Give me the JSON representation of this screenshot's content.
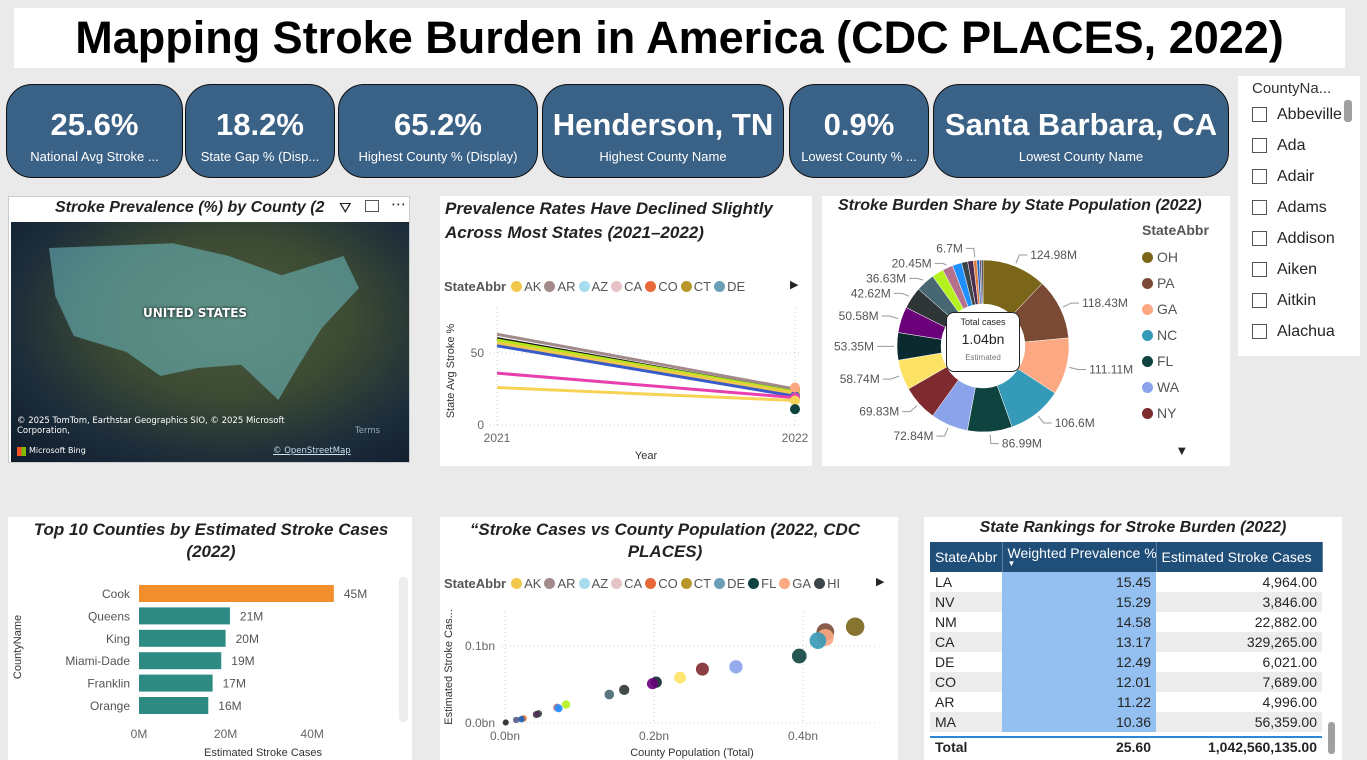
{
  "title": "Mapping Stroke Burden in America (CDC PLACES, 2022)",
  "kpis": [
    {
      "value": "25.6%",
      "label": "National Avg Stroke ..."
    },
    {
      "value": "18.2%",
      "label": "State Gap % (Disp..."
    },
    {
      "value": "65.2%",
      "label": "Highest County % (Display)"
    },
    {
      "value": "Henderson, TN",
      "label": "Highest County Name"
    },
    {
      "value": "0.9%",
      "label": "Lowest County % ..."
    },
    {
      "value": "Santa Barbara, CA",
      "label": "Lowest County Name"
    }
  ],
  "slicer": {
    "header": "CountyNa...",
    "items": [
      "Abbeville",
      "Ada",
      "Adair",
      "Adams",
      "Addison",
      "Aiken",
      "Aitkin",
      "Alachua"
    ]
  },
  "map": {
    "title": "Stroke Prevalence (%) by County (2",
    "label": "UNITED STATES",
    "attribution": "© 2025 TomTom, Earthstar Geographics SIO, © 2025 Microsoft Corporation,",
    "terms": "Terms",
    "osm": "© OpenStreetMap",
    "brand": "Microsoft Bing",
    "icons": [
      "filter-icon",
      "focus-mode-icon",
      "more-options-icon"
    ]
  },
  "line": {
    "title": "Prevalence Rates Have Declined Slightly Across Most States (2021–2022)",
    "legend_title": "StateAbbr",
    "legend": [
      {
        "name": "AK",
        "color": "#f2c84b"
      },
      {
        "name": "AR",
        "color": "#a38a8a"
      },
      {
        "name": "AZ",
        "color": "#a8dcef"
      },
      {
        "name": "CA",
        "color": "#e6c3c6"
      },
      {
        "name": "CO",
        "color": "#e8683a"
      },
      {
        "name": "CT",
        "color": "#b8962a"
      },
      {
        "name": "DE",
        "color": "#6a9fb5"
      }
    ]
  },
  "scatter": {
    "title": "“Stroke Cases vs County Population (2022, CDC PLACES)",
    "legend_title": "StateAbbr",
    "legend": [
      {
        "name": "AK",
        "color": "#f2c84b"
      },
      {
        "name": "AR",
        "color": "#a38a8a"
      },
      {
        "name": "AZ",
        "color": "#a8dcef"
      },
      {
        "name": "CA",
        "color": "#e6c3c6"
      },
      {
        "name": "CO",
        "color": "#e8683a"
      },
      {
        "name": "CT",
        "color": "#b8962a"
      },
      {
        "name": "DE",
        "color": "#6a9fb5"
      },
      {
        "name": "FL",
        "color": "#0e433f"
      },
      {
        "name": "GA",
        "color": "#fba883"
      },
      {
        "name": "HI",
        "color": "#3c4548"
      }
    ]
  },
  "donut": {
    "title": "Stroke Burden Share by State Population (2022)",
    "legend_title": "StateAbbr",
    "center_label": "Total cases",
    "center_value": "1.04bn",
    "center_sub": "Estimated",
    "legend": [
      {
        "name": "OH",
        "color": "#7a6519"
      },
      {
        "name": "PA",
        "color": "#7b4a35"
      },
      {
        "name": "GA",
        "color": "#fba883"
      },
      {
        "name": "NC",
        "color": "#3599b8"
      },
      {
        "name": "FL",
        "color": "#0e433f"
      },
      {
        "name": "WA",
        "color": "#8aa3ea"
      },
      {
        "name": "NY",
        "color": "#7e2a2f"
      }
    ]
  },
  "bar": {
    "title": "Top 10 Counties by Estimated Stroke Cases (2022)"
  },
  "table": {
    "title": "State Rankings for Stroke Burden (2022)",
    "columns": [
      "StateAbbr",
      "Weighted Prevalence %",
      "Estimated Stroke Cases"
    ],
    "rows": [
      [
        "LA",
        "15.45",
        "4,964.00"
      ],
      [
        "NV",
        "15.29",
        "3,846.00"
      ],
      [
        "NM",
        "14.58",
        "22,882.00"
      ],
      [
        "CA",
        "13.17",
        "329,265.00"
      ],
      [
        "DE",
        "12.49",
        "6,021.00"
      ],
      [
        "CO",
        "12.01",
        "7,689.00"
      ],
      [
        "AR",
        "11.22",
        "4,996.00"
      ],
      [
        "MA",
        "10.36",
        "56,359.00"
      ]
    ],
    "total": [
      "Total",
      "25.60",
      "1,042,560,135.00"
    ],
    "sort": "descending"
  },
  "chart_data": [
    {
      "type": "line",
      "title": "Prevalence Rates Have Declined Slightly Across Most States (2021–2022)",
      "xlabel": "Year",
      "ylabel": "State Avg Stroke %",
      "x": [
        2021,
        2022
      ],
      "yticks": [
        0,
        50
      ],
      "ylim": [
        0,
        75
      ],
      "grid": true,
      "series": [
        {
          "color": "#a38a8a",
          "values": [
            63,
            25
          ]
        },
        {
          "color": "#111111",
          "values": [
            60,
            23
          ]
        },
        {
          "color": "#b5e61d",
          "values": [
            59,
            23
          ]
        },
        {
          "color": "#f2c84b",
          "values": [
            57,
            22
          ]
        },
        {
          "color": "#3a5bc7",
          "values": [
            55,
            20
          ]
        },
        {
          "color": "#e83fae",
          "values": [
            36,
            19
          ]
        },
        {
          "color": "#f7d358",
          "values": [
            26,
            17
          ]
        }
      ]
    },
    {
      "type": "pie",
      "title": "Stroke Burden Share by State Population (2022)",
      "unit": "M",
      "slices": [
        {
          "name": "OH",
          "value": 124.98,
          "label": "124.98M",
          "color": "#7a6519"
        },
        {
          "name": "PA",
          "value": 118.43,
          "label": "118.43M",
          "color": "#7b4a35"
        },
        {
          "name": "GA",
          "value": 111.11,
          "label": "111.11M",
          "color": "#fba883"
        },
        {
          "name": "NC",
          "value": 106.6,
          "label": "106.6M",
          "color": "#3599b8"
        },
        {
          "name": "FL",
          "value": 86.99,
          "label": "86.99M",
          "color": "#0e433f"
        },
        {
          "name": "WA",
          "value": 72.84,
          "label": "72.84M",
          "color": "#8aa3ea"
        },
        {
          "name": "NY",
          "value": 69.83,
          "label": "69.83M",
          "color": "#7e2a2f"
        },
        {
          "value": 58.74,
          "label": "58.74M",
          "color": "#fde365"
        },
        {
          "value": 53.35,
          "label": "53.35M",
          "color": "#0b2a30"
        },
        {
          "value": 50.58,
          "label": "50.58M",
          "color": "#6b007b"
        },
        {
          "value": 42.62,
          "label": "42.62M",
          "color": "#2f3638"
        },
        {
          "value": 36.63,
          "label": "36.63M",
          "color": "#476773"
        },
        {
          "value": 23,
          "color": "#b5f01f"
        },
        {
          "value": 20.45,
          "label": "20.45M",
          "color": "#b5718b"
        },
        {
          "value": 18,
          "color": "#1e90ff"
        },
        {
          "value": 12,
          "color": "#3c4548"
        },
        {
          "value": 11,
          "color": "#4b2c4f"
        },
        {
          "value": 6.7,
          "label": "6.7M",
          "color": "#e07a3f"
        },
        {
          "value": 5,
          "color": "#1a5fb4"
        },
        {
          "value": 4,
          "color": "#555a8a"
        },
        {
          "value": 3,
          "color": "#222"
        }
      ]
    },
    {
      "type": "bar",
      "orientation": "horizontal",
      "title": "Top 10 Counties by Estimated Stroke Cases (2022)",
      "xlabel": "Estimated Stroke Cases",
      "ylabel": "CountyName",
      "xticks": [
        "0M",
        "20M",
        "40M"
      ],
      "xlim": [
        0,
        50
      ],
      "categories": [
        "Cook",
        "Queens",
        "King",
        "Miami-Dade",
        "Franklin",
        "Orange"
      ],
      "values": [
        45,
        21,
        20,
        19,
        17,
        16
      ],
      "labels": [
        "45M",
        "21M",
        "20M",
        "19M",
        "17M",
        "16M"
      ],
      "colors": [
        "#f28e2b",
        "#2e8b84",
        "#2e8b84",
        "#2e8b84",
        "#2e8b84",
        "#2e8b84"
      ]
    },
    {
      "type": "scatter",
      "title": "“Stroke Cases vs County Population (2022, CDC PLACES)",
      "xlabel": "County Population (Total)",
      "ylabel": "Estimated Stroke Cas...",
      "xticks": [
        "0.0bn",
        "0.2bn",
        "0.4bn"
      ],
      "yticks": [
        "0.0bn",
        "0.1bn"
      ],
      "unit": "bn",
      "grid": true,
      "points": [
        {
          "x": 0.47,
          "y": 0.125,
          "color": "#7a6519"
        },
        {
          "x": 0.43,
          "y": 0.118,
          "color": "#7b4a35"
        },
        {
          "x": 0.43,
          "y": 0.111,
          "color": "#fba883"
        },
        {
          "x": 0.42,
          "y": 0.107,
          "color": "#3599b8"
        },
        {
          "x": 0.395,
          "y": 0.087,
          "color": "#0e433f"
        },
        {
          "x": 0.31,
          "y": 0.073,
          "color": "#8aa3ea"
        },
        {
          "x": 0.265,
          "y": 0.07,
          "color": "#7e2a2f"
        },
        {
          "x": 0.235,
          "y": 0.059,
          "color": "#fde365"
        },
        {
          "x": 0.203,
          "y": 0.053,
          "color": "#0b2a30"
        },
        {
          "x": 0.198,
          "y": 0.051,
          "color": "#6b007b"
        },
        {
          "x": 0.16,
          "y": 0.043,
          "color": "#2f3638"
        },
        {
          "x": 0.14,
          "y": 0.037,
          "color": "#476773"
        },
        {
          "x": 0.082,
          "y": 0.024,
          "color": "#b5f01f"
        },
        {
          "x": 0.07,
          "y": 0.02,
          "color": "#b5718b"
        },
        {
          "x": 0.072,
          "y": 0.019,
          "color": "#1e90ff"
        },
        {
          "x": 0.045,
          "y": 0.012,
          "color": "#3c4548"
        },
        {
          "x": 0.042,
          "y": 0.011,
          "color": "#4b2c4f"
        },
        {
          "x": 0.025,
          "y": 0.006,
          "color": "#e07a3f"
        },
        {
          "x": 0.022,
          "y": 0.005,
          "color": "#1a5fb4"
        },
        {
          "x": 0.015,
          "y": 0.004,
          "color": "#555a8a"
        },
        {
          "x": 0.001,
          "y": 0.0007,
          "color": "#222"
        }
      ]
    }
  ]
}
